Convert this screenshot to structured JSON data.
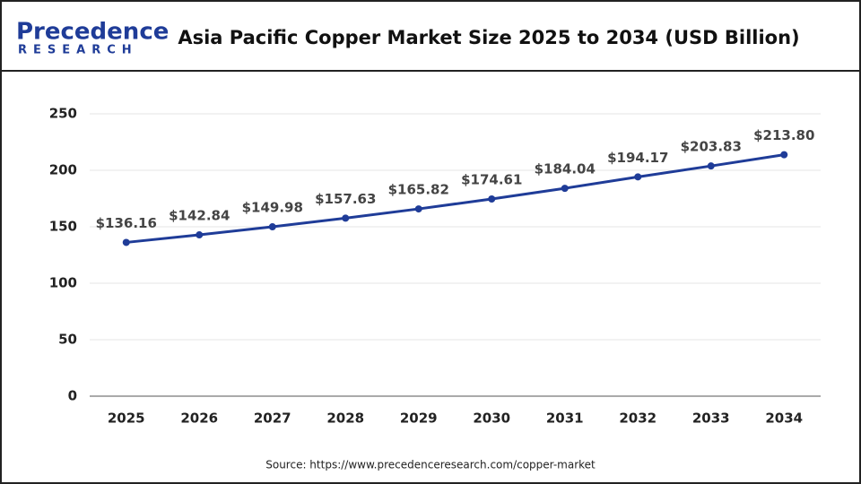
{
  "logo": {
    "name": "Precedence",
    "tagline": "RESEARCH"
  },
  "chart_data": {
    "type": "line",
    "title": "Asia Pacific Copper Market Size 2025 to 2034 (USD Billion)",
    "categories": [
      "2025",
      "2026",
      "2027",
      "2028",
      "2029",
      "2030",
      "2031",
      "2032",
      "2033",
      "2034"
    ],
    "series": [
      {
        "name": "Market Size",
        "color": "#1f3c98",
        "values": [
          136.16,
          142.84,
          149.98,
          157.63,
          165.82,
          174.61,
          184.04,
          194.17,
          203.83,
          213.8
        ],
        "value_labels": [
          "$136.16",
          "$142.84",
          "$149.98",
          "$157.63",
          "$165.82",
          "$174.61",
          "$184.04",
          "$194.17",
          "$203.83",
          "$213.80"
        ]
      }
    ],
    "ylim": [
      0,
      250
    ],
    "yticks": [
      0,
      50,
      100,
      150,
      200,
      250
    ],
    "grid": true,
    "source": "Source: https://www.precedenceresearch.com/copper-market"
  }
}
